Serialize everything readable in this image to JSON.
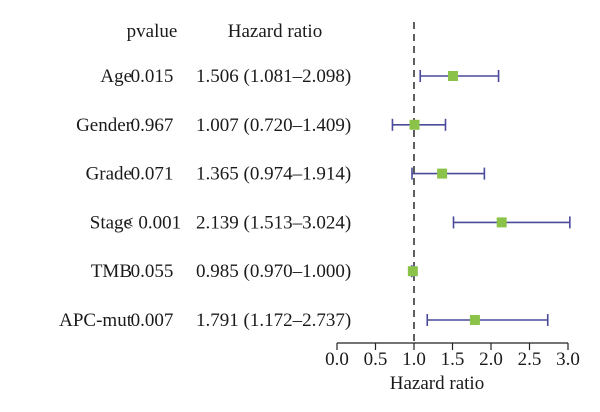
{
  "chart_data": {
    "type": "forest",
    "headers": {
      "pvalue": "pvalue",
      "hazard_ratio": "Hazard ratio"
    },
    "rows": [
      {
        "label": "Age",
        "pvalue": "0.015",
        "hr_text": "1.506 (1.081–2.098)",
        "hr": 1.506,
        "lower": 1.081,
        "upper": 2.098
      },
      {
        "label": "Gender",
        "pvalue": "0.967",
        "hr_text": "1.007 (0.720–1.409)",
        "hr": 1.007,
        "lower": 0.72,
        "upper": 1.409
      },
      {
        "label": "Grade",
        "pvalue": "0.071",
        "hr_text": "1.365 (0.974–1.914)",
        "hr": 1.365,
        "lower": 0.974,
        "upper": 1.914
      },
      {
        "label": "Stage",
        "pvalue": "< 0.001",
        "hr_text": "2.139 (1.513–3.024)",
        "hr": 2.139,
        "lower": 1.513,
        "upper": 3.024
      },
      {
        "label": "TMB",
        "pvalue": "0.055",
        "hr_text": "0.985 (0.970–1.000)",
        "hr": 0.985,
        "lower": 0.97,
        "upper": 1.0
      },
      {
        "label": "APC-mut",
        "pvalue": "0.007",
        "hr_text": "1.791 (1.172–2.737)",
        "hr": 1.791,
        "lower": 1.172,
        "upper": 2.737
      }
    ],
    "x_axis": {
      "label": "Hazard ratio",
      "ticks": [
        "0.0",
        "0.5",
        "1.0",
        "1.5",
        "2.0",
        "2.5",
        "3.0"
      ],
      "range": [
        0,
        3
      ]
    },
    "reference_line": 1.0,
    "colors": {
      "point": "#8bc34a",
      "ci_line": "#4a4a9a"
    }
  }
}
